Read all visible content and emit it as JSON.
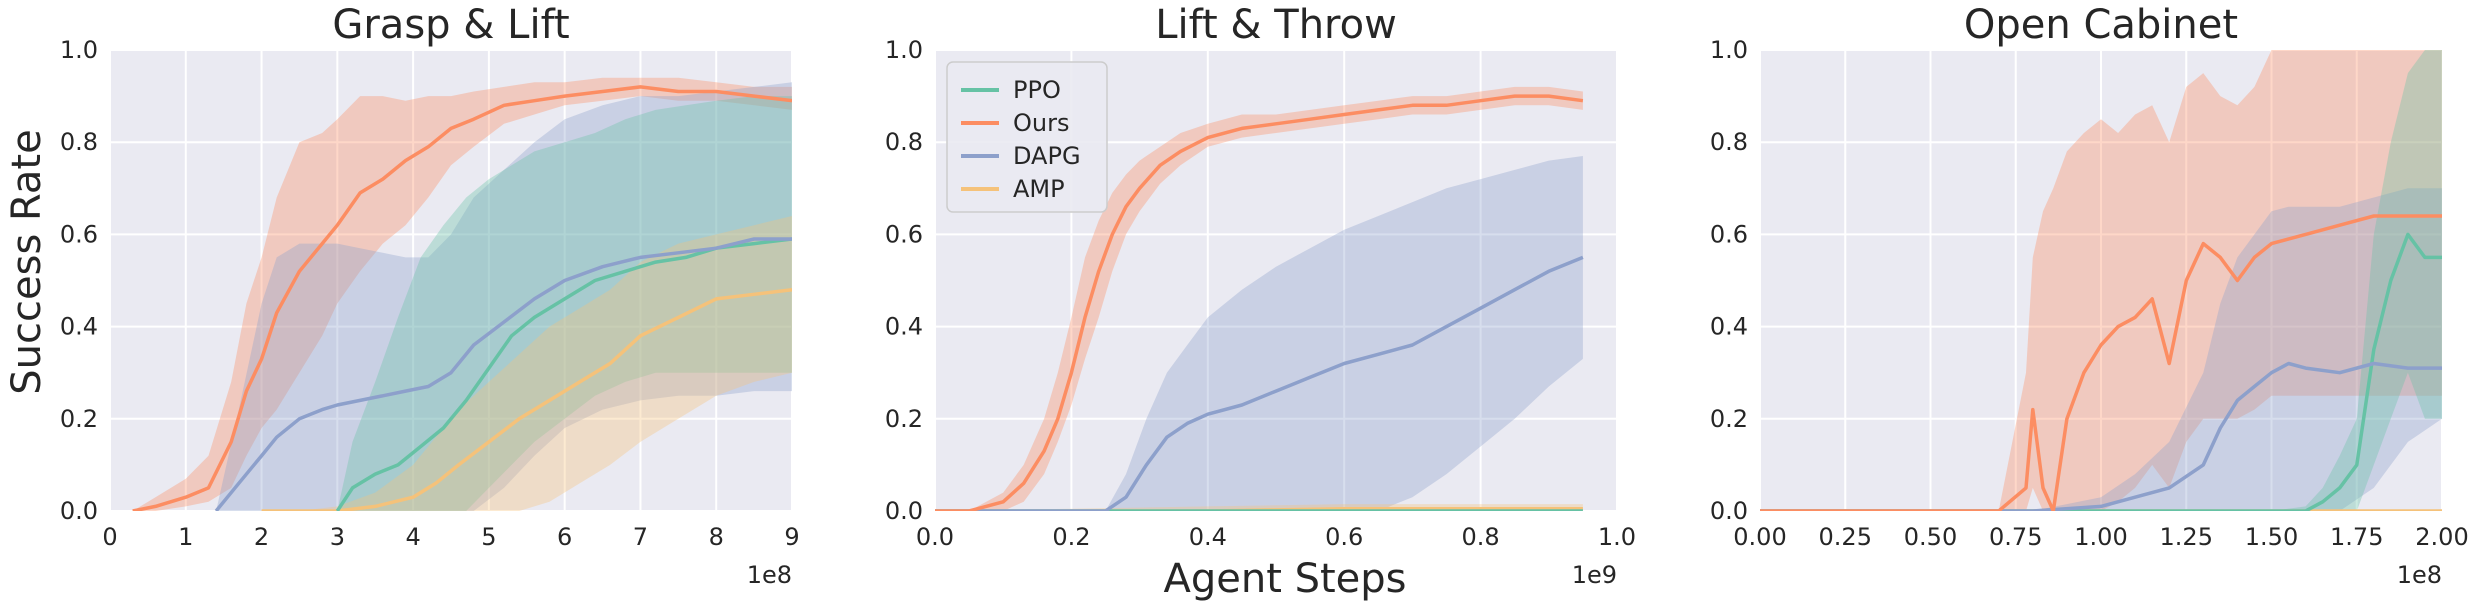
{
  "figure": {
    "ylabel": "Success Rate",
    "xlabel": "Agent Steps"
  },
  "legend": {
    "placement": "top-left of panel 2",
    "entries": [
      {
        "name": "PPO",
        "color": "#66c2a5"
      },
      {
        "name": "Ours",
        "color": "#fc8d62"
      },
      {
        "name": "DAPG",
        "color": "#8da0cb"
      },
      {
        "name": "AMP",
        "color": "#f5c27a"
      }
    ]
  },
  "colors": {
    "background": "#eaeaf2",
    "grid": "#ffffff",
    "PPO": "#66c2a5",
    "Ours": "#fc8d62",
    "DAPG": "#8da0cb",
    "AMP": "#f5c27a"
  },
  "chart_data": [
    {
      "type": "line",
      "title": "Grasp & Lift",
      "xlabel": "",
      "ylabel": "Success Rate",
      "x_unit": "1e8",
      "xlim": [
        0,
        9
      ],
      "ylim": [
        0,
        1
      ],
      "xticks": [
        0,
        1,
        2,
        3,
        4,
        5,
        6,
        7,
        8,
        9
      ],
      "xtick_labels": [
        "0",
        "1",
        "2",
        "3",
        "4",
        "5",
        "6",
        "7",
        "8",
        "9"
      ],
      "yticks": [
        0,
        0.2,
        0.4,
        0.6,
        0.8,
        1.0
      ],
      "ytick_labels": [
        "0.0",
        "0.2",
        "0.4",
        "0.6",
        "0.8",
        "1.0"
      ],
      "grid": true,
      "series": [
        {
          "name": "Ours",
          "x": [
            0.3,
            0.6,
            1.0,
            1.3,
            1.6,
            1.8,
            2.0,
            2.2,
            2.5,
            2.8,
            3.0,
            3.3,
            3.6,
            3.9,
            4.2,
            4.5,
            4.8,
            5.2,
            5.6,
            6.0,
            6.5,
            7.0,
            7.5,
            8.0,
            8.5,
            9.0
          ],
          "y": [
            0.0,
            0.01,
            0.03,
            0.05,
            0.15,
            0.26,
            0.33,
            0.43,
            0.52,
            0.58,
            0.62,
            0.69,
            0.72,
            0.76,
            0.79,
            0.83,
            0.85,
            0.88,
            0.89,
            0.9,
            0.91,
            0.92,
            0.91,
            0.91,
            0.9,
            0.89
          ],
          "lower": [
            0.0,
            0.0,
            0.01,
            0.02,
            0.05,
            0.12,
            0.18,
            0.22,
            0.3,
            0.38,
            0.45,
            0.52,
            0.58,
            0.62,
            0.68,
            0.75,
            0.79,
            0.84,
            0.86,
            0.88,
            0.89,
            0.9,
            0.89,
            0.89,
            0.88,
            0.87
          ],
          "upper": [
            0.0,
            0.03,
            0.07,
            0.12,
            0.28,
            0.45,
            0.55,
            0.68,
            0.8,
            0.82,
            0.85,
            0.9,
            0.9,
            0.89,
            0.9,
            0.9,
            0.91,
            0.92,
            0.93,
            0.93,
            0.94,
            0.94,
            0.94,
            0.93,
            0.92,
            0.92
          ]
        },
        {
          "name": "DAPG",
          "x": [
            1.4,
            1.7,
            2.0,
            2.2,
            2.5,
            2.8,
            3.0,
            3.3,
            3.6,
            3.9,
            4.2,
            4.5,
            4.8,
            5.2,
            5.6,
            6.0,
            6.5,
            7.0,
            7.5,
            8.0,
            8.5,
            9.0
          ],
          "y": [
            0.0,
            0.06,
            0.12,
            0.16,
            0.2,
            0.22,
            0.23,
            0.24,
            0.25,
            0.26,
            0.27,
            0.3,
            0.36,
            0.41,
            0.46,
            0.5,
            0.53,
            0.55,
            0.56,
            0.57,
            0.59,
            0.59
          ],
          "lower": [
            0.0,
            0.0,
            0.0,
            0.0,
            0.0,
            0.0,
            0.0,
            0.0,
            0.0,
            0.0,
            0.0,
            0.0,
            0.0,
            0.05,
            0.12,
            0.18,
            0.22,
            0.24,
            0.25,
            0.25,
            0.26,
            0.26
          ],
          "upper": [
            0.0,
            0.22,
            0.45,
            0.55,
            0.58,
            0.58,
            0.58,
            0.57,
            0.56,
            0.55,
            0.55,
            0.6,
            0.68,
            0.74,
            0.8,
            0.85,
            0.88,
            0.9,
            0.9,
            0.91,
            0.92,
            0.93
          ]
        },
        {
          "name": "PPO",
          "x": [
            3.0,
            3.2,
            3.5,
            3.8,
            4.1,
            4.4,
            4.7,
            5.0,
            5.3,
            5.6,
            6.0,
            6.4,
            6.8,
            7.2,
            7.6,
            8.0,
            8.5,
            9.0
          ],
          "y": [
            0.0,
            0.05,
            0.08,
            0.1,
            0.14,
            0.18,
            0.24,
            0.31,
            0.38,
            0.42,
            0.46,
            0.5,
            0.52,
            0.54,
            0.55,
            0.57,
            0.58,
            0.59
          ],
          "lower": [
            0.0,
            0.0,
            0.0,
            0.0,
            0.0,
            0.0,
            0.0,
            0.05,
            0.1,
            0.15,
            0.2,
            0.25,
            0.28,
            0.3,
            0.3,
            0.3,
            0.3,
            0.3
          ],
          "upper": [
            0.0,
            0.15,
            0.28,
            0.42,
            0.55,
            0.62,
            0.68,
            0.72,
            0.75,
            0.78,
            0.8,
            0.82,
            0.85,
            0.87,
            0.88,
            0.89,
            0.9,
            0.9
          ]
        },
        {
          "name": "AMP",
          "x": [
            2.0,
            2.5,
            3.0,
            3.5,
            4.0,
            4.3,
            4.6,
            5.0,
            5.4,
            5.8,
            6.2,
            6.6,
            7.0,
            7.5,
            8.0,
            8.5,
            9.0
          ],
          "y": [
            0.0,
            0.0,
            0.0,
            0.01,
            0.03,
            0.06,
            0.1,
            0.15,
            0.2,
            0.24,
            0.28,
            0.32,
            0.38,
            0.42,
            0.46,
            0.47,
            0.48
          ],
          "lower": [
            0.0,
            0.0,
            0.0,
            0.0,
            0.0,
            0.0,
            0.0,
            0.0,
            0.0,
            0.02,
            0.06,
            0.1,
            0.15,
            0.2,
            0.25,
            0.28,
            0.3
          ],
          "upper": [
            0.0,
            0.0,
            0.01,
            0.04,
            0.1,
            0.16,
            0.22,
            0.28,
            0.34,
            0.4,
            0.44,
            0.48,
            0.54,
            0.58,
            0.6,
            0.62,
            0.64
          ]
        }
      ]
    },
    {
      "type": "line",
      "title": "Lift & Throw",
      "xlabel": "Agent Steps",
      "ylabel": "",
      "x_unit": "1e9",
      "xlim": [
        0,
        1.0
      ],
      "ylim": [
        0,
        1
      ],
      "xticks": [
        0,
        0.2,
        0.4,
        0.6,
        0.8,
        1.0
      ],
      "xtick_labels": [
        "0.0",
        "0.2",
        "0.4",
        "0.6",
        "0.8",
        "1.0"
      ],
      "yticks": [
        0,
        0.2,
        0.4,
        0.6,
        0.8,
        1.0
      ],
      "ytick_labels": [
        "0.0",
        "0.2",
        "0.4",
        "0.6",
        "0.8",
        "1.0"
      ],
      "grid": true,
      "series": [
        {
          "name": "Ours",
          "x": [
            0.0,
            0.05,
            0.1,
            0.13,
            0.16,
            0.18,
            0.2,
            0.22,
            0.24,
            0.26,
            0.28,
            0.3,
            0.33,
            0.36,
            0.4,
            0.45,
            0.5,
            0.55,
            0.6,
            0.65,
            0.7,
            0.75,
            0.8,
            0.85,
            0.9,
            0.95
          ],
          "y": [
            0.0,
            0.0,
            0.02,
            0.06,
            0.13,
            0.2,
            0.3,
            0.42,
            0.52,
            0.6,
            0.66,
            0.7,
            0.75,
            0.78,
            0.81,
            0.83,
            0.84,
            0.85,
            0.86,
            0.87,
            0.88,
            0.88,
            0.89,
            0.9,
            0.9,
            0.89
          ],
          "lower": [
            0.0,
            0.0,
            0.0,
            0.02,
            0.08,
            0.15,
            0.23,
            0.33,
            0.42,
            0.52,
            0.6,
            0.65,
            0.71,
            0.75,
            0.79,
            0.81,
            0.82,
            0.83,
            0.84,
            0.85,
            0.86,
            0.86,
            0.87,
            0.88,
            0.88,
            0.87
          ],
          "upper": [
            0.0,
            0.0,
            0.04,
            0.1,
            0.2,
            0.3,
            0.42,
            0.55,
            0.63,
            0.69,
            0.73,
            0.76,
            0.79,
            0.82,
            0.84,
            0.86,
            0.86,
            0.87,
            0.88,
            0.89,
            0.9,
            0.9,
            0.91,
            0.92,
            0.92,
            0.91
          ]
        },
        {
          "name": "DAPG",
          "x": [
            0.0,
            0.1,
            0.2,
            0.25,
            0.28,
            0.31,
            0.34,
            0.37,
            0.4,
            0.45,
            0.5,
            0.55,
            0.6,
            0.65,
            0.7,
            0.75,
            0.8,
            0.85,
            0.9,
            0.95
          ],
          "y": [
            0.0,
            0.0,
            0.0,
            0.0,
            0.03,
            0.1,
            0.16,
            0.19,
            0.21,
            0.23,
            0.26,
            0.29,
            0.32,
            0.34,
            0.36,
            0.4,
            0.44,
            0.48,
            0.52,
            0.55
          ],
          "lower": [
            0.0,
            0.0,
            0.0,
            0.0,
            0.0,
            0.0,
            0.0,
            0.0,
            0.0,
            0.0,
            0.0,
            0.0,
            0.0,
            0.0,
            0.03,
            0.08,
            0.14,
            0.2,
            0.27,
            0.33
          ],
          "upper": [
            0.0,
            0.0,
            0.0,
            0.0,
            0.08,
            0.2,
            0.3,
            0.36,
            0.42,
            0.48,
            0.53,
            0.57,
            0.61,
            0.64,
            0.67,
            0.7,
            0.72,
            0.74,
            0.76,
            0.77
          ]
        },
        {
          "name": "PPO",
          "x": [
            0.0,
            0.95
          ],
          "y": [
            0.0,
            0.0
          ],
          "lower": [
            0.0,
            0.0
          ],
          "upper": [
            0.0,
            0.0
          ]
        },
        {
          "name": "AMP",
          "x": [
            0.0,
            0.2,
            0.4,
            0.6,
            0.8,
            0.95
          ],
          "y": [
            0.0,
            0.0,
            0.0,
            0.005,
            0.005,
            0.005
          ],
          "lower": [
            0.0,
            0.0,
            0.0,
            0.0,
            0.0,
            0.0
          ],
          "upper": [
            0.0,
            0.005,
            0.01,
            0.015,
            0.015,
            0.015
          ]
        }
      ]
    },
    {
      "type": "line",
      "title": "Open Cabinet",
      "xlabel": "",
      "ylabel": "",
      "x_unit": "1e8",
      "xlim": [
        0,
        2.0
      ],
      "ylim": [
        0,
        1
      ],
      "xticks": [
        0,
        0.25,
        0.5,
        0.75,
        1.0,
        1.25,
        1.5,
        1.75,
        2.0
      ],
      "xtick_labels": [
        "0.00",
        "0.25",
        "0.50",
        "0.75",
        "1.00",
        "1.25",
        "1.50",
        "1.75",
        "2.00"
      ],
      "yticks": [
        0,
        0.2,
        0.4,
        0.6,
        0.8,
        1.0
      ],
      "ytick_labels": [
        "0.0",
        "0.2",
        "0.4",
        "0.6",
        "0.8",
        "1.0"
      ],
      "grid": true,
      "series": [
        {
          "name": "Ours",
          "x": [
            0.0,
            0.3,
            0.4,
            0.7,
            0.78,
            0.8,
            0.83,
            0.86,
            0.9,
            0.95,
            1.0,
            1.05,
            1.1,
            1.15,
            1.2,
            1.25,
            1.3,
            1.35,
            1.4,
            1.45,
            1.5,
            1.6,
            1.7,
            1.8,
            1.9,
            2.0
          ],
          "y": [
            0.0,
            0.0,
            0.0,
            0.0,
            0.05,
            0.22,
            0.05,
            0.0,
            0.2,
            0.3,
            0.36,
            0.4,
            0.42,
            0.46,
            0.32,
            0.5,
            0.58,
            0.55,
            0.5,
            0.55,
            0.58,
            0.6,
            0.62,
            0.64,
            0.64,
            0.64
          ],
          "lower": [
            0.0,
            0.0,
            0.0,
            0.0,
            0.0,
            0.05,
            0.0,
            0.0,
            0.0,
            0.0,
            0.0,
            0.02,
            0.05,
            0.1,
            0.05,
            0.15,
            0.2,
            0.2,
            0.2,
            0.22,
            0.25,
            0.25,
            0.25,
            0.25,
            0.25,
            0.25
          ],
          "upper": [
            0.0,
            0.0,
            0.0,
            0.0,
            0.3,
            0.55,
            0.65,
            0.7,
            0.78,
            0.82,
            0.85,
            0.82,
            0.86,
            0.88,
            0.8,
            0.92,
            0.95,
            0.9,
            0.88,
            0.92,
            1.0,
            1.0,
            1.0,
            1.0,
            1.0,
            1.0
          ]
        },
        {
          "name": "DAPG",
          "x": [
            0.0,
            0.5,
            0.8,
            1.0,
            1.1,
            1.2,
            1.3,
            1.35,
            1.4,
            1.45,
            1.5,
            1.55,
            1.6,
            1.7,
            1.8,
            1.9,
            2.0
          ],
          "y": [
            0.0,
            0.0,
            0.0,
            0.01,
            0.03,
            0.05,
            0.1,
            0.18,
            0.24,
            0.27,
            0.3,
            0.32,
            0.31,
            0.3,
            0.32,
            0.31,
            0.31
          ],
          "lower": [
            0.0,
            0.0,
            0.0,
            0.0,
            0.0,
            0.0,
            0.0,
            0.0,
            0.0,
            0.0,
            0.0,
            0.0,
            0.0,
            0.0,
            0.05,
            0.15,
            0.2
          ],
          "upper": [
            0.0,
            0.0,
            0.0,
            0.03,
            0.08,
            0.15,
            0.3,
            0.45,
            0.55,
            0.6,
            0.65,
            0.66,
            0.66,
            0.66,
            0.68,
            0.7,
            0.7
          ]
        },
        {
          "name": "PPO",
          "x": [
            0.0,
            1.5,
            1.6,
            1.65,
            1.7,
            1.75,
            1.8,
            1.85,
            1.9,
            1.95,
            2.0
          ],
          "y": [
            0.0,
            0.0,
            0.0,
            0.02,
            0.05,
            0.1,
            0.35,
            0.5,
            0.6,
            0.55,
            0.55
          ],
          "lower": [
            0.0,
            0.0,
            0.0,
            0.0,
            0.0,
            0.0,
            0.1,
            0.2,
            0.3,
            0.2,
            0.2
          ],
          "upper": [
            0.0,
            0.0,
            0.01,
            0.05,
            0.12,
            0.2,
            0.6,
            0.8,
            0.95,
            1.0,
            1.0
          ]
        },
        {
          "name": "AMP",
          "x": [
            0.0,
            1.0,
            2.0
          ],
          "y": [
            0.0,
            0.0,
            0.0
          ],
          "lower": [
            0.0,
            0.0,
            0.0
          ],
          "upper": [
            0.0,
            0.0,
            0.0
          ]
        }
      ]
    }
  ]
}
